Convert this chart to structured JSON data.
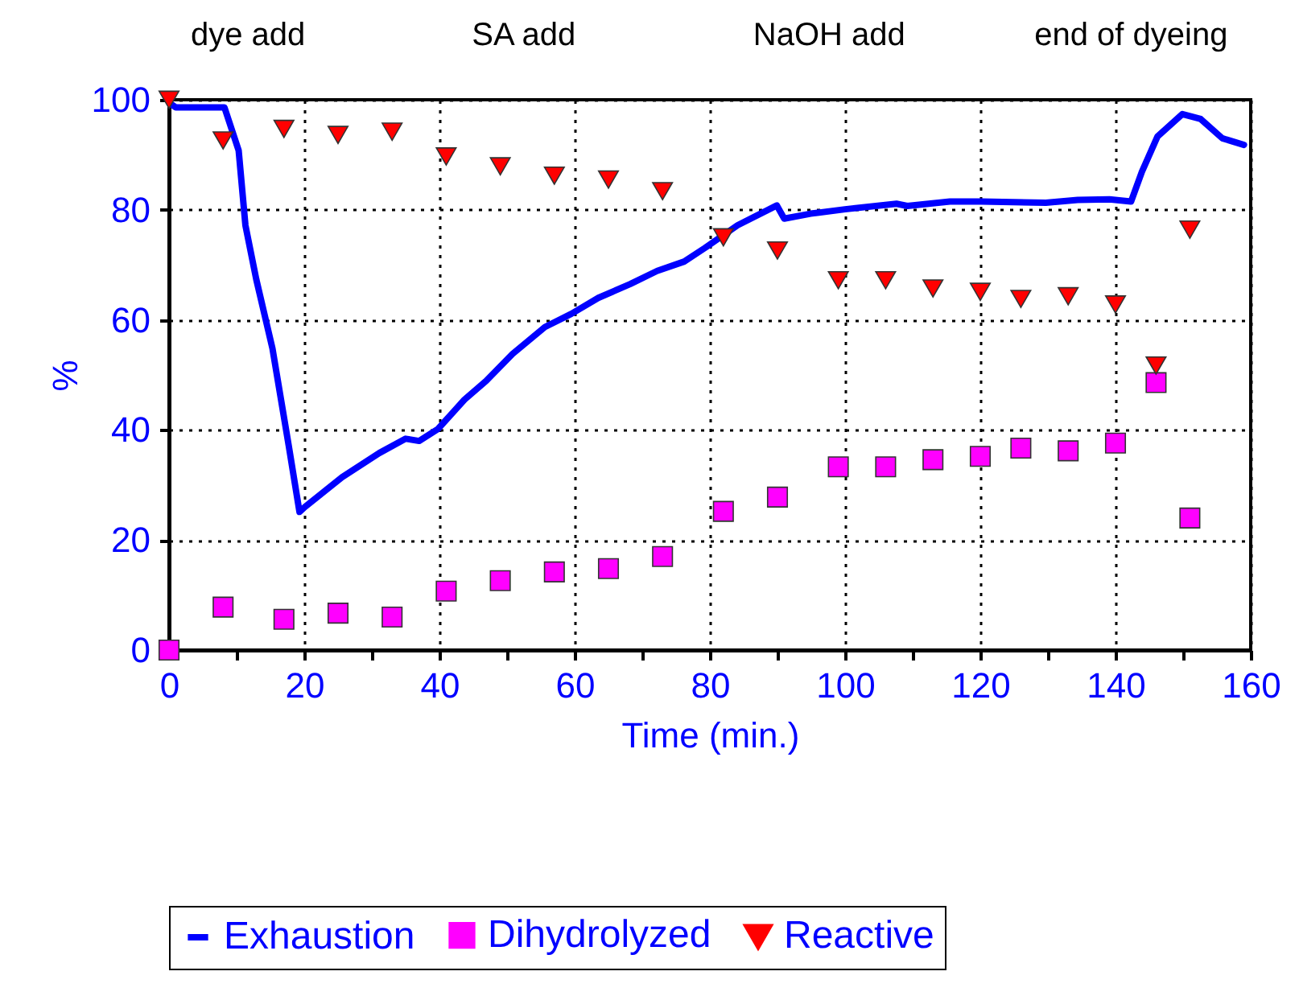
{
  "chart_data": {
    "type": "line",
    "xlabel": "Time (min.)",
    "ylabel": "%",
    "xlim": [
      0,
      160
    ],
    "ylim": [
      0,
      100
    ],
    "xticks": [
      0,
      {
        "value": 10,
        "label": null
      },
      20,
      {
        "value": 30,
        "label": null
      },
      40,
      {
        "value": 50,
        "label": null
      },
      60,
      {
        "value": 70,
        "label": null
      },
      80,
      {
        "value": 90,
        "label": null
      },
      100,
      {
        "value": 110,
        "label": null
      },
      120,
      {
        "value": 130,
        "label": null
      },
      140,
      {
        "value": 150,
        "label": null
      },
      160
    ],
    "yticks": [
      0,
      20,
      40,
      60,
      80,
      100
    ],
    "grid": true,
    "legend": "bottom",
    "annotations": [
      "dye add",
      "SA add",
      "NaOH add",
      "end of dyeing"
    ],
    "series": [
      {
        "name": "Exhaustion",
        "color": "#0000ff",
        "marker": "none",
        "line_style": "solid",
        "x": [
          0,
          1,
          8.2,
          10.3,
          11.3,
          12.9,
          15.3,
          17.7,
          19.3,
          20.1,
          25.6,
          31.1,
          35,
          37,
          39.8,
          43.7,
          46.9,
          50.8,
          55.6,
          59.5,
          63.5,
          68.2,
          72.2,
          76.2,
          79.3,
          84.1,
          89.9,
          91,
          94.9,
          100,
          107.6,
          109.2,
          115.5,
          120.2,
          129.7,
          134.4,
          139.1,
          142.3,
          143.9,
          146.2,
          149.9,
          152.6,
          155.8,
          159
        ],
        "values": [
          99.5,
          98.6,
          98.6,
          90.8,
          77.2,
          67.4,
          54.8,
          37.2,
          25.1,
          26,
          31.4,
          35.8,
          38.4,
          38,
          40.2,
          45.5,
          48.9,
          53.8,
          58.7,
          61.1,
          64,
          66.5,
          68.9,
          70.6,
          73.1,
          77.2,
          80.8,
          78.4,
          79.3,
          80.1,
          81.1,
          80.7,
          81.5,
          81.5,
          81.3,
          81.8,
          81.9,
          81.5,
          86.9,
          93.3,
          97.4,
          96.5,
          93,
          91.8
        ]
      },
      {
        "name": "Dihydrolyzed",
        "type": "scatter",
        "color": "#ff00ff",
        "marker": "square",
        "x": [
          0,
          8,
          17,
          25,
          33,
          41,
          49,
          57,
          65,
          73,
          82,
          90,
          99,
          106,
          113,
          120,
          126,
          133,
          140,
          146,
          151
        ],
        "values": [
          0,
          7.8,
          5.6,
          6.7,
          6,
          10.7,
          12.6,
          14.2,
          14.8,
          17,
          25.2,
          27.8,
          33.3,
          33.3,
          34.6,
          35.2,
          36.7,
          36.2,
          37.6,
          48.6,
          24
        ]
      },
      {
        "name": "Reactive",
        "type": "scatter",
        "color": "#ff0000",
        "marker": "triangle",
        "x": [
          0,
          8,
          17,
          25,
          33,
          41,
          49,
          57,
          65,
          73,
          82,
          90,
          99,
          106,
          113,
          120,
          126,
          133,
          140,
          146,
          151
        ],
        "values": [
          100,
          92.6,
          94.7,
          93.6,
          94.2,
          89.7,
          87.9,
          86.2,
          85.5,
          83.4,
          75,
          72.6,
          67.2,
          67.2,
          65.7,
          65.1,
          63.8,
          64.3,
          62.8,
          51.7,
          76.4
        ]
      }
    ]
  }
}
